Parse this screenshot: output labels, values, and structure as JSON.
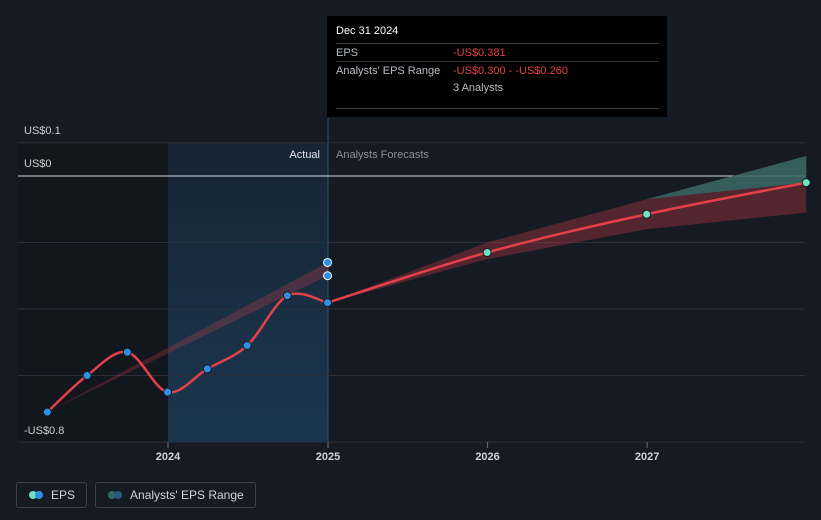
{
  "chart_data": {
    "type": "line",
    "y_labels": {
      "top": "US$0.1",
      "zero": "US$0",
      "bottom": "-US$0.8"
    },
    "ylim": [
      -0.8,
      0.1
    ],
    "x_ticks": [
      "2024",
      "2025",
      "2026",
      "2027"
    ],
    "region_labels": {
      "actual": "Actual",
      "forecast": "Analysts Forecasts"
    },
    "series": [
      {
        "name": "EPS",
        "kind": "actual",
        "x": [
          "2023-03-31",
          "2023-06-30",
          "2023-09-30",
          "2023-12-31",
          "2024-03-31",
          "2024-06-30",
          "2024-09-30",
          "2024-12-31"
        ],
        "values": [
          -0.71,
          -0.6,
          -0.53,
          -0.65,
          -0.58,
          -0.51,
          -0.36,
          -0.381
        ]
      },
      {
        "name": "EPS",
        "kind": "forecast",
        "x": [
          "2024-12-31",
          "2025-12-31",
          "2026-12-31",
          "2027-12-31"
        ],
        "values": [
          -0.381,
          -0.23,
          -0.115,
          -0.02
        ]
      }
    ],
    "range": {
      "name": "Analysts' EPS Range",
      "actual": {
        "x": [
          "2023-03-31",
          "2024-12-31"
        ],
        "low": [
          -0.71,
          -0.3
        ],
        "high": [
          -0.71,
          -0.26
        ]
      },
      "forecast": {
        "x": [
          "2024-12-31",
          "2025-12-31",
          "2026-12-31",
          "2027-12-31"
        ],
        "low": [
          -0.381,
          -0.25,
          -0.16,
          -0.11
        ],
        "high": [
          -0.381,
          -0.2,
          -0.07,
          0.06
        ]
      },
      "extra_points": [
        {
          "x": "2024-12-31",
          "value": -0.26
        },
        {
          "x": "2024-12-31",
          "value": -0.3
        }
      ]
    },
    "legend": [
      "EPS",
      "Analysts' EPS Range"
    ],
    "legend_placement": "bottom-left",
    "grid": true
  },
  "tooltip": {
    "date": "Dec 31 2024",
    "eps_label": "EPS",
    "eps_value": "-US$0.381",
    "range_label": "Analysts' EPS Range",
    "range_value": "-US$0.300 - -US$0.260",
    "analysts": "3 Analysts"
  },
  "legend": {
    "eps": "EPS",
    "range": "Analysts' EPS Range"
  },
  "colors": {
    "background": "#151a23",
    "eps_line": "#e5404a",
    "actual_point": "#2f8fe0",
    "forecast_point": "#6fe3c0",
    "range_fill": "#e5404a",
    "forecast_band_top": "#2e6b66",
    "highlight": "#1b3852"
  }
}
